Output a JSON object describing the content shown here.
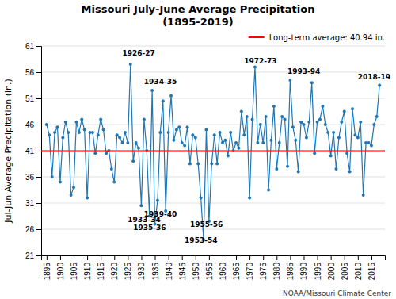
{
  "chart_data": {
    "type": "line",
    "title": "Missouri July-June Average Precipitation\n(1895-2019)",
    "y_label": "Jul-Jun Average Precipitation (in.)",
    "caption": "NOAA/Missouri Climate Center",
    "marker": "circle",
    "x": [
      1895,
      1896,
      1897,
      1898,
      1899,
      1900,
      1901,
      1902,
      1903,
      1904,
      1905,
      1906,
      1907,
      1908,
      1909,
      1910,
      1911,
      1912,
      1913,
      1914,
      1915,
      1916,
      1917,
      1918,
      1919,
      1920,
      1921,
      1922,
      1923,
      1924,
      1925,
      1926,
      1927,
      1928,
      1929,
      1930,
      1931,
      1932,
      1933,
      1934,
      1935,
      1936,
      1937,
      1938,
      1939,
      1940,
      1941,
      1942,
      1943,
      1944,
      1945,
      1946,
      1947,
      1948,
      1949,
      1950,
      1951,
      1952,
      1953,
      1954,
      1955,
      1956,
      1957,
      1958,
      1959,
      1960,
      1961,
      1962,
      1963,
      1964,
      1965,
      1966,
      1967,
      1968,
      1969,
      1970,
      1971,
      1972,
      1973,
      1974,
      1975,
      1976,
      1977,
      1978,
      1979,
      1980,
      1981,
      1982,
      1983,
      1984,
      1985,
      1986,
      1987,
      1988,
      1989,
      1990,
      1991,
      1992,
      1993,
      1994,
      1995,
      1996,
      1997,
      1998,
      1999,
      2000,
      2001,
      2002,
      2003,
      2004,
      2005,
      2006,
      2007,
      2008,
      2009,
      2010,
      2011,
      2012,
      2013,
      2014,
      2015,
      2016,
      2017,
      2018
    ],
    "values": [
      46.0,
      44.0,
      36.0,
      44.5,
      45.5,
      35.0,
      43.5,
      46.5,
      44.5,
      32.5,
      34.0,
      46.5,
      44.5,
      47.0,
      45.0,
      32.0,
      44.5,
      44.5,
      40.5,
      44.0,
      47.0,
      45.0,
      40.5,
      41.0,
      37.5,
      35.0,
      44.0,
      43.5,
      42.5,
      44.5,
      42.5,
      57.5,
      39.0,
      42.5,
      41.5,
      30.5,
      47.0,
      41.0,
      28.5,
      52.5,
      27.0,
      31.5,
      44.5,
      50.5,
      29.5,
      44.5,
      51.5,
      43.0,
      45.0,
      45.5,
      42.5,
      42.0,
      45.5,
      38.5,
      44.0,
      43.5,
      38.5,
      32.0,
      24.0,
      45.0,
      27.5,
      38.5,
      44.0,
      38.5,
      44.5,
      42.5,
      43.0,
      40.0,
      44.5,
      41.0,
      42.5,
      41.5,
      48.5,
      44.0,
      47.5,
      32.0,
      47.0,
      57.0,
      42.5,
      46.0,
      42.5,
      47.5,
      33.5,
      43.0,
      49.5,
      37.5,
      42.5,
      47.5,
      47.0,
      38.0,
      54.5,
      45.5,
      43.0,
      37.0,
      46.5,
      46.0,
      43.5,
      46.5,
      54.0,
      40.5,
      46.5,
      47.0,
      49.5,
      46.0,
      44.5,
      40.0,
      44.5,
      37.5,
      43.5,
      46.5,
      48.5,
      40.5,
      37.0,
      49.0,
      44.0,
      43.5,
      46.5,
      32.5,
      42.5,
      42.5,
      42.0,
      46.0,
      47.5,
      53.5
    ],
    "hlines": [
      {
        "value": 40.94,
        "label": "Long-term average: 40.94 in.",
        "color": "#FF0000"
      }
    ],
    "annotations": [
      {
        "text": "1926-27",
        "x": 1923,
        "y": 59.0,
        "anchor": "bottom"
      },
      {
        "text": "1934-35",
        "x": 1931,
        "y": 53.5,
        "anchor": "bottom"
      },
      {
        "text": "1972-73",
        "x": 1968,
        "y": 57.5,
        "anchor": "bottom"
      },
      {
        "text": "1993-94",
        "x": 1984,
        "y": 55.5,
        "anchor": "bottom"
      },
      {
        "text": "2018-19",
        "x": 2010,
        "y": 54.5,
        "anchor": "bottom"
      },
      {
        "text": "1933-34",
        "x": 1925,
        "y": 28.5,
        "anchor": "top"
      },
      {
        "text": "1935-36",
        "x": 1927,
        "y": 27.0,
        "anchor": "top"
      },
      {
        "text": "1939-40",
        "x": 1931,
        "y": 29.5,
        "anchor": "top"
      },
      {
        "text": "1953-54",
        "x": 1946,
        "y": 24.5,
        "anchor": "top"
      },
      {
        "text": "1955-56",
        "x": 1948,
        "y": 27.5,
        "anchor": "top"
      }
    ],
    "xlim": [
      1893,
      2020
    ],
    "xticks": [
      1895,
      1900,
      1905,
      1910,
      1915,
      1920,
      1925,
      1930,
      1935,
      1940,
      1945,
      1950,
      1955,
      1960,
      1965,
      1970,
      1975,
      1980,
      1985,
      1990,
      1995,
      2000,
      2005,
      2010,
      2015
    ],
    "ylim": [
      21.0,
      61.0
    ],
    "yticks": [
      21.0,
      26.0,
      31.0,
      36.0,
      41.0,
      46.0,
      51.0,
      56.0,
      61.0
    ],
    "grid": true,
    "legend": "upper right"
  }
}
